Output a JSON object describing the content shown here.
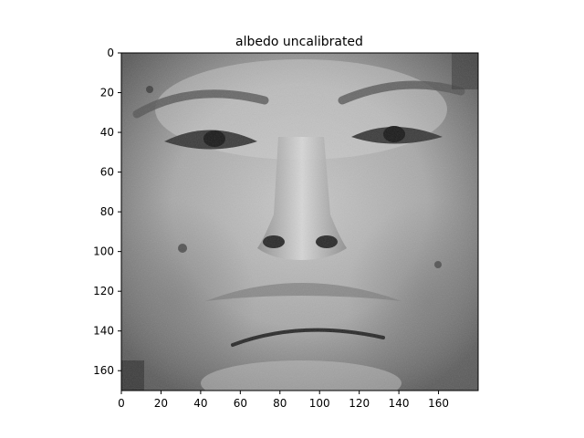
{
  "figure": {
    "title": "albedo uncalibrated",
    "colormap": "gray",
    "image_content": "grayscale albedo map of a frontal human face"
  },
  "axes": {
    "x_ticks": [
      "0",
      "20",
      "40",
      "60",
      "80",
      "100",
      "120",
      "140",
      "160"
    ],
    "y_ticks": [
      "0",
      "20",
      "40",
      "60",
      "80",
      "100",
      "120",
      "140",
      "160"
    ]
  }
}
